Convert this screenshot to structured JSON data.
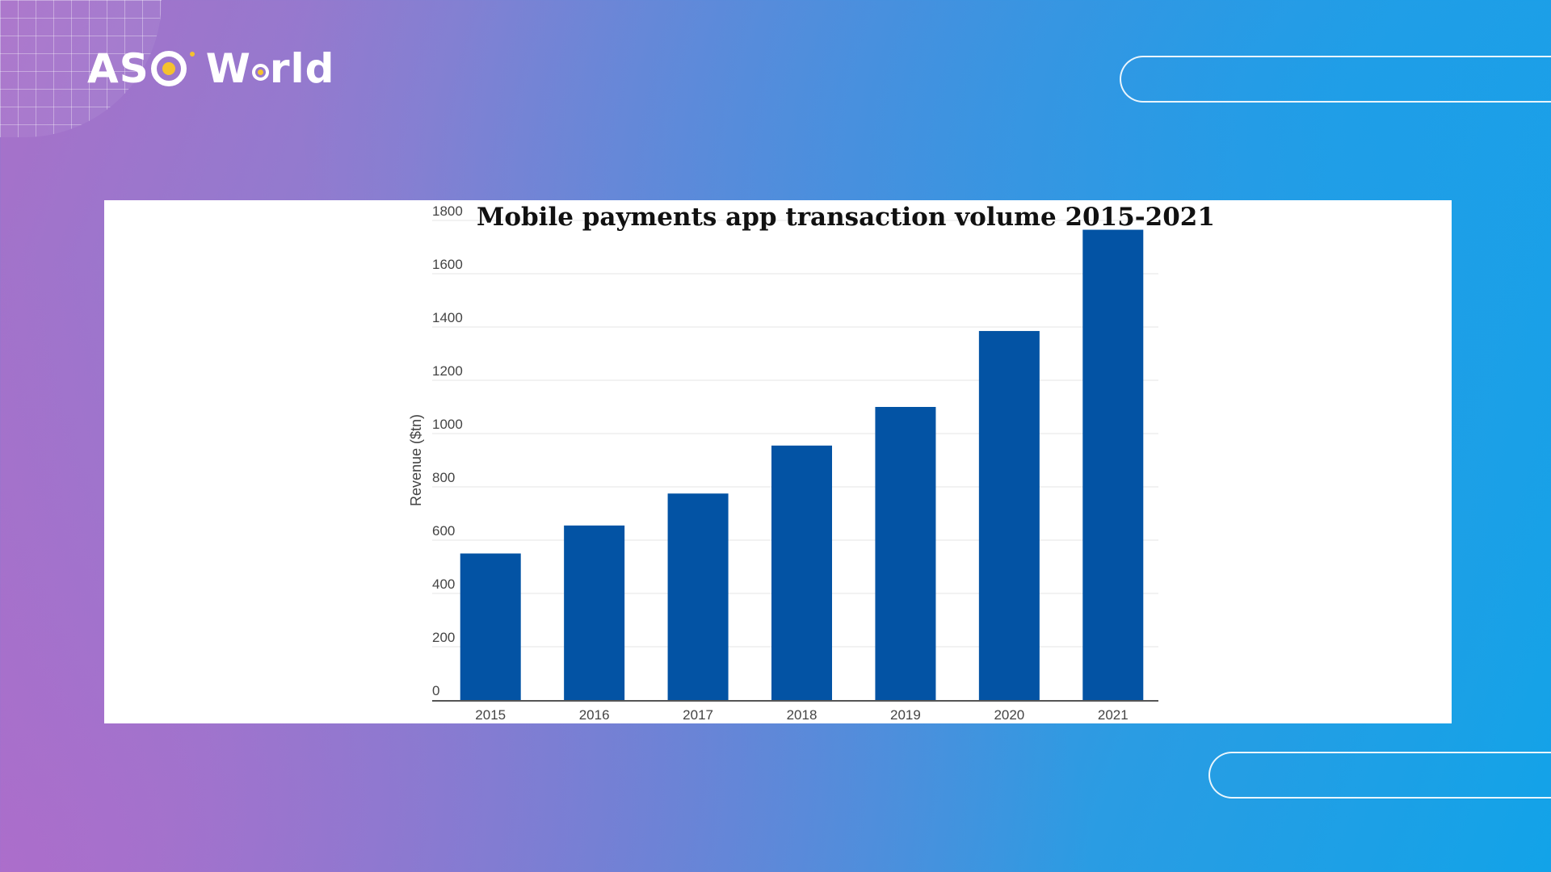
{
  "brand": {
    "logo_text": "ASO World",
    "colors": {
      "accent_dot": "#f5c12e",
      "logo": "#ffffff"
    }
  },
  "chart_data": {
    "type": "bar",
    "title": "Mobile payments app transaction volume 2015-2021",
    "xlabel": "",
    "ylabel": "Revenue ($tn)",
    "categories": [
      "2015",
      "2016",
      "2017",
      "2018",
      "2019",
      "2020",
      "2021"
    ],
    "values": [
      550,
      655,
      775,
      955,
      1100,
      1385,
      1765
    ],
    "ylim": [
      0,
      1800
    ],
    "yticks": [
      0,
      200,
      400,
      600,
      800,
      1000,
      1200,
      1400,
      1600,
      1800
    ],
    "bar_color": "#0353a4",
    "grid": true,
    "legend": "none"
  }
}
